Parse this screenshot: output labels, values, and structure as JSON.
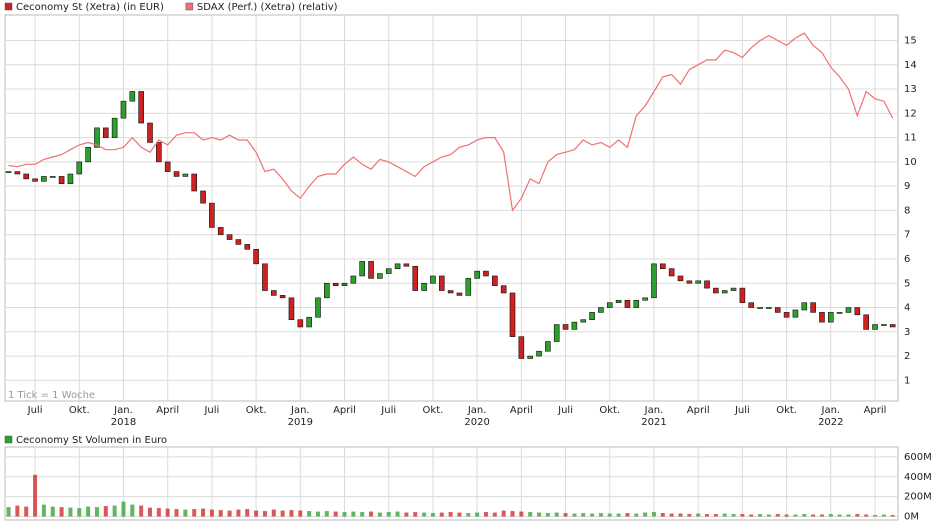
{
  "chart_data": [
    {
      "type": "candlestick",
      "x": [
        2017.35,
        2017.4,
        2017.45,
        2017.5,
        2017.55,
        2017.6,
        2017.65,
        2017.7,
        2017.75,
        2017.8,
        2017.85,
        2017.9,
        2017.95,
        2018.0,
        2018.05,
        2018.1,
        2018.15,
        2018.2,
        2018.25,
        2018.3,
        2018.35,
        2018.4,
        2018.45,
        2018.5,
        2018.55,
        2018.6,
        2018.65,
        2018.7,
        2018.75,
        2018.8,
        2018.85,
        2018.9,
        2018.95,
        2019.0,
        2019.05,
        2019.1,
        2019.15,
        2019.2,
        2019.25,
        2019.3,
        2019.35,
        2019.4,
        2019.45,
        2019.5,
        2019.55,
        2019.6,
        2019.65,
        2019.7,
        2019.75,
        2019.8,
        2019.85,
        2019.9,
        2019.95,
        2020.0,
        2020.05,
        2020.1,
        2020.15,
        2020.2,
        2020.25,
        2020.3,
        2020.35,
        2020.4,
        2020.45,
        2020.5,
        2020.55,
        2020.6,
        2020.65,
        2020.7,
        2020.75,
        2020.8,
        2020.85,
        2020.9,
        2020.95,
        2021.0,
        2021.05,
        2021.1,
        2021.15,
        2021.2,
        2021.25,
        2021.3,
        2021.35,
        2021.4,
        2021.45,
        2021.5,
        2021.55,
        2021.6,
        2021.65,
        2021.7,
        2021.75,
        2021.8,
        2021.85,
        2021.9,
        2021.95,
        2022.0,
        2022.05,
        2022.1,
        2022.15,
        2022.2,
        2022.25,
        2022.3,
        2022.35
      ],
      "series": [
        {
          "name": "Ceconomy St (Xetra) (in EUR)",
          "color": "#cc2222",
          "values": [
            9.6,
            9.5,
            9.3,
            9.2,
            9.4,
            9.4,
            9.1,
            9.5,
            10.0,
            10.6,
            11.4,
            11.0,
            11.8,
            12.5,
            12.9,
            11.6,
            10.8,
            10.0,
            9.6,
            9.4,
            9.5,
            8.8,
            8.3,
            7.3,
            7.0,
            6.8,
            6.6,
            6.4,
            5.8,
            4.7,
            4.5,
            4.4,
            3.5,
            3.2,
            3.6,
            4.4,
            5.0,
            4.9,
            5.0,
            5.3,
            5.9,
            5.2,
            5.4,
            5.6,
            5.8,
            5.7,
            4.7,
            5.0,
            5.3,
            4.7,
            4.6,
            4.5,
            5.2,
            5.5,
            5.3,
            4.9,
            4.6,
            2.8,
            1.9,
            2.0,
            2.2,
            2.6,
            3.3,
            3.1,
            3.4,
            3.5,
            3.8,
            4.0,
            4.2,
            4.3,
            4.0,
            4.3,
            4.4,
            5.8,
            5.6,
            5.3,
            5.1,
            5.0,
            5.1,
            4.8,
            4.6,
            4.7,
            4.8,
            4.2,
            4.0,
            4.0,
            4.0,
            3.8,
            3.6,
            3.9,
            4.2,
            3.8,
            3.4,
            3.8,
            3.8,
            4.0,
            3.7,
            3.1,
            3.3,
            3.3,
            3.2
          ]
        },
        {
          "name": "SDAX (Perf.) (Xetra) (relativ)",
          "color": "#f07070",
          "type": "line",
          "values": [
            9.85,
            9.8,
            9.9,
            9.9,
            10.1,
            10.2,
            10.3,
            10.5,
            10.7,
            10.8,
            10.7,
            10.5,
            10.5,
            10.6,
            11.0,
            10.6,
            10.4,
            10.9,
            10.7,
            11.1,
            11.2,
            11.2,
            10.9,
            11.0,
            10.9,
            11.1,
            10.9,
            10.9,
            10.4,
            9.6,
            9.7,
            9.3,
            8.8,
            8.5,
            9.0,
            9.4,
            9.5,
            9.5,
            9.9,
            10.2,
            9.9,
            9.7,
            10.1,
            10.0,
            9.8,
            9.6,
            9.4,
            9.8,
            10.0,
            10.2,
            10.3,
            10.6,
            10.7,
            10.9,
            11.0,
            11.0,
            10.4,
            8.0,
            8.5,
            9.3,
            9.1,
            10.0,
            10.3,
            10.4,
            10.5,
            10.9,
            10.7,
            10.8,
            10.6,
            10.9,
            10.6,
            11.9,
            12.3,
            12.9,
            13.5,
            13.6,
            13.2,
            13.8,
            14.0,
            14.2,
            14.2,
            14.6,
            14.5,
            14.3,
            14.7,
            15.0,
            15.2,
            15.0,
            14.8,
            15.1,
            15.3,
            14.8,
            14.5,
            13.9,
            13.5,
            13.0,
            11.9,
            12.9,
            12.6,
            12.5,
            11.8
          ]
        }
      ],
      "up_color": "#2e9e2e",
      "down_color": "#cc2222",
      "xlim": [
        2017.33,
        2022.38
      ],
      "xticks": [
        {
          "value": 2017.5,
          "label": "Juli"
        },
        {
          "value": 2017.75,
          "label": "Okt."
        },
        {
          "value": 2018.0,
          "label": "Jan."
        },
        {
          "value": 2018.25,
          "label": "April"
        },
        {
          "value": 2018.5,
          "label": "Juli"
        },
        {
          "value": 2018.75,
          "label": "Okt."
        },
        {
          "value": 2019.0,
          "label": "Jan."
        },
        {
          "value": 2019.25,
          "label": "April"
        },
        {
          "value": 2019.5,
          "label": "Juli"
        },
        {
          "value": 2019.75,
          "label": "Okt."
        },
        {
          "value": 2020.0,
          "label": "Jan."
        },
        {
          "value": 2020.25,
          "label": "April"
        },
        {
          "value": 2020.5,
          "label": "Juli"
        },
        {
          "value": 2020.75,
          "label": "Okt."
        },
        {
          "value": 2021.0,
          "label": "Jan."
        },
        {
          "value": 2021.25,
          "label": "April"
        },
        {
          "value": 2021.5,
          "label": "Juli"
        },
        {
          "value": 2021.75,
          "label": "Okt."
        },
        {
          "value": 2022.0,
          "label": "Jan."
        },
        {
          "value": 2022.25,
          "label": "April"
        }
      ],
      "xyears": [
        2018,
        2019,
        2020,
        2021,
        2022
      ],
      "ylim": [
        0.15,
        16.05
      ],
      "yticks": [
        1,
        2,
        3,
        4,
        5,
        6,
        7,
        8,
        9,
        10,
        11,
        12,
        13,
        14,
        15
      ],
      "note": "1 Tick = 1 Woche",
      "grid": true
    },
    {
      "type": "bar",
      "x": [
        2017.35,
        2017.4,
        2017.45,
        2017.5,
        2017.55,
        2017.6,
        2017.65,
        2017.7,
        2017.75,
        2017.8,
        2017.85,
        2017.9,
        2017.95,
        2018.0,
        2018.05,
        2018.1,
        2018.15,
        2018.2,
        2018.25,
        2018.3,
        2018.35,
        2018.4,
        2018.45,
        2018.5,
        2018.55,
        2018.6,
        2018.65,
        2018.7,
        2018.75,
        2018.8,
        2018.85,
        2018.9,
        2018.95,
        2019.0,
        2019.05,
        2019.1,
        2019.15,
        2019.2,
        2019.25,
        2019.3,
        2019.35,
        2019.4,
        2019.45,
        2019.5,
        2019.55,
        2019.6,
        2019.65,
        2019.7,
        2019.75,
        2019.8,
        2019.85,
        2019.9,
        2019.95,
        2020.0,
        2020.05,
        2020.1,
        2020.15,
        2020.2,
        2020.25,
        2020.3,
        2020.35,
        2020.4,
        2020.45,
        2020.5,
        2020.55,
        2020.6,
        2020.65,
        2020.7,
        2020.75,
        2020.8,
        2020.85,
        2020.9,
        2020.95,
        2021.0,
        2021.05,
        2021.1,
        2021.15,
        2021.2,
        2021.25,
        2021.3,
        2021.35,
        2021.4,
        2021.45,
        2021.5,
        2021.55,
        2021.6,
        2021.65,
        2021.7,
        2021.75,
        2021.8,
        2021.85,
        2021.9,
        2021.95,
        2022.0,
        2022.05,
        2022.1,
        2022.15,
        2022.2,
        2022.25,
        2022.3,
        2022.35
      ],
      "series": [
        {
          "name": "Ceconomy St Volumen in Euro",
          "color": "#2e9e2e",
          "values": [
            95,
            110,
            100,
            420,
            120,
            100,
            95,
            90,
            85,
            100,
            95,
            105,
            110,
            150,
            120,
            110,
            90,
            85,
            80,
            75,
            70,
            75,
            80,
            70,
            65,
            60,
            70,
            75,
            60,
            55,
            70,
            60,
            65,
            60,
            55,
            50,
            55,
            50,
            45,
            50,
            45,
            50,
            40,
            45,
            50,
            40,
            45,
            40,
            35,
            40,
            45,
            40,
            35,
            40,
            45,
            40,
            60,
            55,
            50,
            45,
            40,
            35,
            40,
            35,
            30,
            35,
            30,
            35,
            30,
            30,
            35,
            30,
            40,
            45,
            35,
            30,
            30,
            25,
            30,
            25,
            25,
            30,
            25,
            25,
            20,
            25,
            20,
            25,
            20,
            20,
            25,
            20,
            20,
            25,
            20,
            20,
            25,
            20,
            15,
            20,
            15
          ]
        }
      ],
      "xlim": [
        2017.33,
        2022.38
      ],
      "ylim": [
        -35,
        700
      ],
      "yticks": [
        {
          "value": 0,
          "label": "0M"
        },
        {
          "value": 200,
          "label": "200M"
        },
        {
          "value": 400,
          "label": "400M"
        },
        {
          "value": 600,
          "label": "600M"
        }
      ],
      "grid": true
    }
  ]
}
